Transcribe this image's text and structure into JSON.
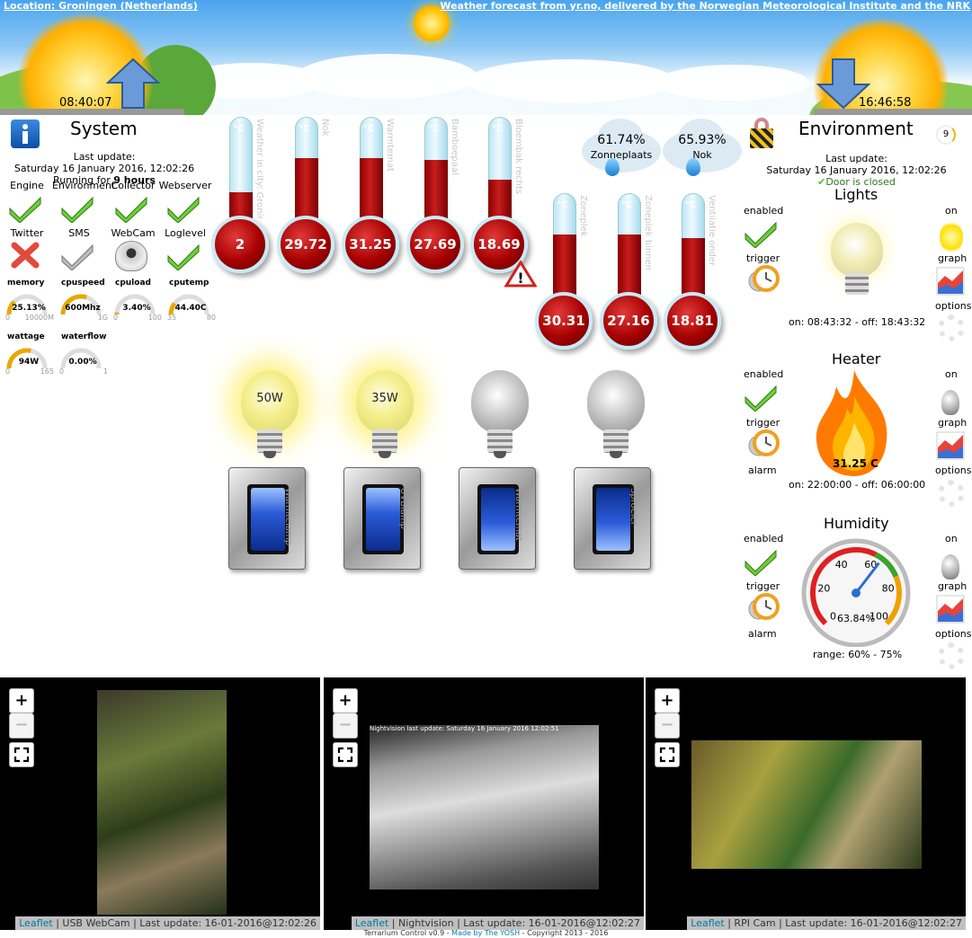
{
  "header": {
    "location_link": "Location: Groningen (Netherlands)",
    "forecast_link": "Weather forecast from yr.no, delivered by the Norwegian Meteorological Institute and the NRK",
    "sunrise_time": "08:40:07",
    "sunset_time": "16:46:58"
  },
  "system": {
    "title": "System",
    "last_update_label": "Last update:",
    "last_update": "Saturday 16 January 2016, 12:02:26",
    "running_prefix": "Running for ",
    "running_value": "9 hours",
    "status": [
      {
        "label": "Engine",
        "state": "ok"
      },
      {
        "label": "Environment",
        "state": "ok"
      },
      {
        "label": "Collector",
        "state": "ok"
      },
      {
        "label": "Webserver",
        "state": "ok"
      },
      {
        "label": "Twitter",
        "state": "error"
      },
      {
        "label": "SMS",
        "state": "disabled"
      },
      {
        "label": "WebCam",
        "state": "webcam"
      },
      {
        "label": "Loglevel",
        "state": "ok"
      }
    ],
    "gauges": [
      {
        "label": "memory",
        "value": "25.13%",
        "min": "0",
        "max": "10000M",
        "level": 0.25
      },
      {
        "label": "cpuspeed",
        "value": "600Mhz",
        "min": "",
        "max": "1G",
        "level": 0.6
      },
      {
        "label": "cpuload",
        "value": "3.40%",
        "min": "0",
        "max": "100",
        "level": 0.034
      },
      {
        "label": "cputemp",
        "value": "44.40C",
        "min": "35",
        "max": "80",
        "level": 0.21
      },
      {
        "label": "wattage",
        "value": "94W",
        "min": "0",
        "max": "165",
        "level": 0.57
      },
      {
        "label": "waterflow",
        "value": "0.00%",
        "min": "0",
        "max": "1",
        "level": 0
      }
    ]
  },
  "thermometers": [
    {
      "name": "Weather in city: Groningen",
      "value": "2",
      "level": 0.3,
      "warning": false
    },
    {
      "name": "Nok",
      "value": "29.72",
      "level": 0.62,
      "warning": false
    },
    {
      "name": "Warmtemat",
      "value": "31.25",
      "level": 0.62,
      "warning": false
    },
    {
      "name": "Bamboepaal",
      "value": "27.69",
      "level": 0.6,
      "warning": false
    },
    {
      "name": "Bloembak rechts",
      "value": "18.69",
      "level": 0.42,
      "warning": true
    },
    {
      "name": "Zoneplek",
      "value": "30.31",
      "level": 0.62,
      "warning": false
    },
    {
      "name": "Zoneplek binnen",
      "value": "27.16",
      "level": 0.62,
      "warning": false
    },
    {
      "name": "Ventilatie onder",
      "value": "18.81",
      "level": 0.58,
      "warning": false
    }
  ],
  "humidity_sensors": [
    {
      "value": "61.74%",
      "name": "Zonneplaats"
    },
    {
      "value": "65.93%",
      "name": "Nok"
    }
  ],
  "deg_symbol": "°C",
  "bulbs": [
    {
      "watt": "50W",
      "on": true
    },
    {
      "watt": "35W",
      "on": true
    },
    {
      "watt": "",
      "on": false
    },
    {
      "watt": "",
      "on": false
    }
  ],
  "switches": [
    {
      "name": "Warmtelamp"
    },
    {
      "name": "UVBlamp"
    },
    {
      "name": "Warmtemat"
    },
    {
      "name": "Sproeier"
    }
  ],
  "environment": {
    "title": "Environment",
    "badge": "9",
    "last_update_label": "Last update:",
    "last_update": "Saturday 16 January 2016, 12:02:26",
    "door": "Door is closed",
    "lights": {
      "title": "Lights",
      "enabled": "enabled",
      "trigger": "trigger",
      "on": "on",
      "graph": "graph",
      "options": "options",
      "schedule": "on: 08:43:32 - off: 18:43:32"
    },
    "heater": {
      "title": "Heater",
      "enabled": "enabled",
      "trigger": "trigger",
      "alarm": "alarm",
      "on": "on",
      "graph": "graph",
      "options": "options",
      "value": "31.25 C",
      "schedule": "on: 22:00:00 - off: 06:00:00"
    },
    "humidity": {
      "title": "Humidity",
      "enabled": "enabled",
      "trigger": "trigger",
      "alarm": "alarm",
      "on": "on",
      "graph": "graph",
      "options": "options",
      "value": "63.84%",
      "level": 0.6384,
      "ticks": [
        "0",
        "20",
        "40",
        "60",
        "80",
        "100"
      ],
      "range": "range: 60% - 75%"
    }
  },
  "cams": [
    {
      "leaflet": "Leaflet",
      "caption": " | USB WebCam | Last update: 16-01-2016@12:02:26",
      "overlay": ""
    },
    {
      "leaflet": "Leaflet",
      "caption": " | Nightvision | Last update: 16-01-2016@12:02:27",
      "overlay": "Nightvision last update: Saturday 16 January 2016 12:02:51"
    },
    {
      "leaflet": "Leaflet",
      "caption": " | RPI Cam | Last update: 16-01-2016@12:02:27",
      "overlay": ""
    }
  ],
  "zoom": {
    "plus": "+",
    "minus": "−"
  },
  "footer": {
    "prefix": "Terrarium Control v0.9 - ",
    "link": "Made by The YOSH",
    "suffix": " - Copyright 2013 - 2016"
  },
  "colors": {
    "sky_top": "#4aa4ee",
    "mercury": "#b00000",
    "check_green": "#5fbf2a",
    "error_red": "#e24a3b"
  }
}
